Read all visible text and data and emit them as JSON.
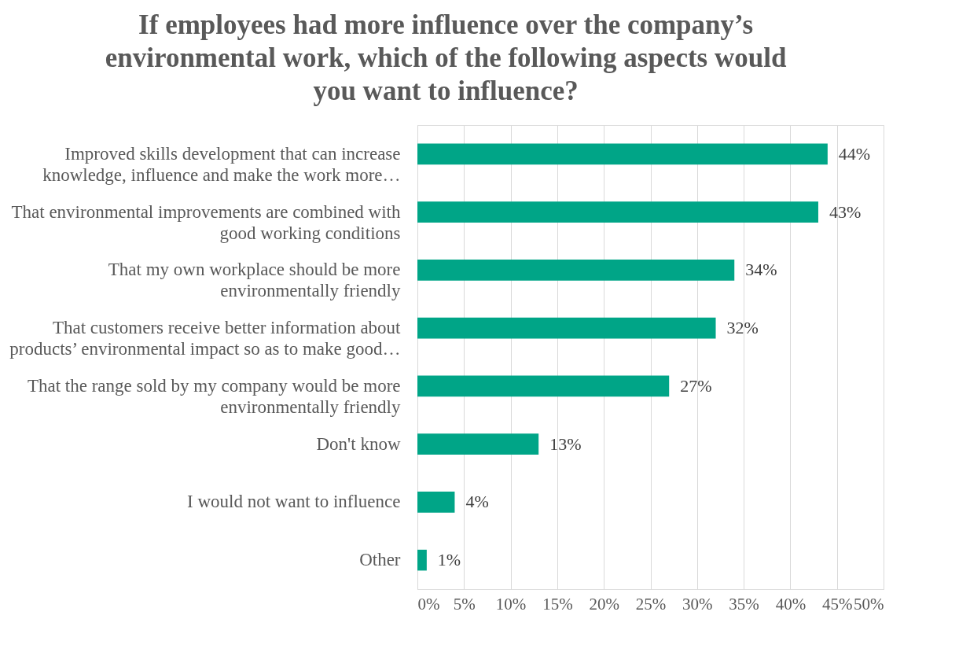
{
  "chart_data": {
    "type": "bar",
    "orientation": "horizontal",
    "title": "If employees had more influence over the company’s\nenvironmental work, which of the following aspects would\nyou want to influence?",
    "categories": [
      "Improved skills development that can increase\nknowledge, influence and make the work more…",
      "That environmental improvements are combined with\ngood working conditions",
      "That my own workplace should be more\nenvironmentally friendly",
      "That customers receive better information about\nproducts’ environmental impact so as to make good…",
      "That the range sold by my company would be more\nenvironmentally friendly",
      "Don't know",
      "I would not want to influence",
      "Other"
    ],
    "values": [
      44,
      43,
      34,
      32,
      27,
      13,
      4,
      1
    ],
    "value_labels": [
      "44%",
      "43%",
      "34%",
      "32%",
      "27%",
      "13%",
      "4%",
      "1%"
    ],
    "color": "#00a587",
    "xlim": [
      0,
      50
    ],
    "xticks": [
      {
        "value": 0,
        "label": "0%"
      },
      {
        "value": 5,
        "label": "5%"
      },
      {
        "value": 10,
        "label": "10%"
      },
      {
        "value": 15,
        "label": "15%"
      },
      {
        "value": 20,
        "label": "20%"
      },
      {
        "value": 25,
        "label": "25%"
      },
      {
        "value": 30,
        "label": "30%"
      },
      {
        "value": 35,
        "label": "35%"
      },
      {
        "value": 40,
        "label": "40%"
      },
      {
        "value": 45,
        "label": "45%"
      },
      {
        "value": 50,
        "label": "50%"
      }
    ],
    "grid": "x"
  }
}
